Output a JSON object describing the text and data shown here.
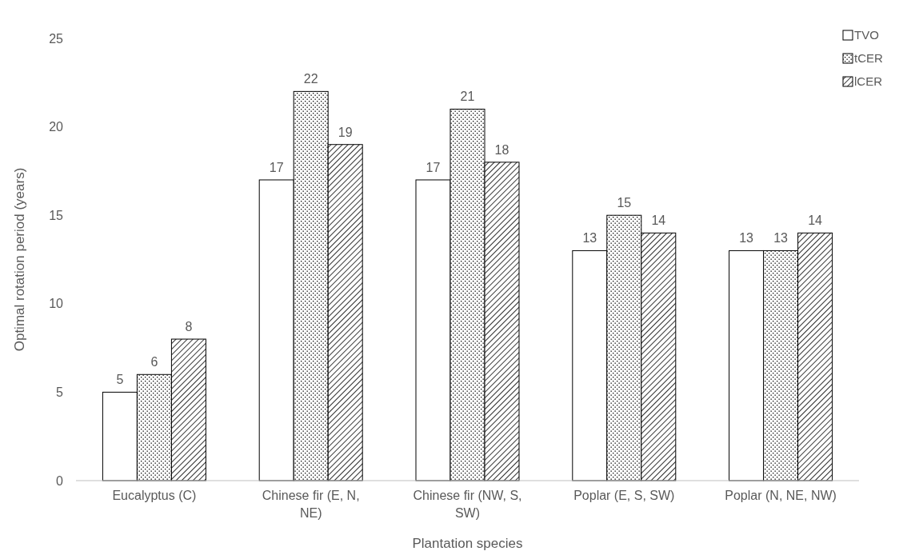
{
  "chart_data": {
    "type": "bar",
    "xlabel": "Plantation species",
    "ylabel": "Optimal rotation period (years)",
    "categories": [
      "Eucalyptus (C)",
      "Chinese fir (E, N, NE)",
      "Chinese fir (NW, S, SW)",
      "Poplar (E, S, SW)",
      "Poplar (N, NE, NW)"
    ],
    "series": [
      {
        "name": "TVO",
        "color": "#ffffff",
        "values": [
          5,
          17,
          17,
          13,
          13
        ]
      },
      {
        "name": "tCER",
        "color": "#000000",
        "values": [
          6,
          22,
          21,
          15,
          13
        ]
      },
      {
        "name": "lCER",
        "color": "#000000",
        "values": [
          8,
          19,
          18,
          14,
          14
        ]
      }
    ],
    "ylim": [
      0,
      25
    ],
    "yticks": [
      0,
      5,
      10,
      15,
      20,
      25
    ],
    "grid": false,
    "legend": "top right",
    "data_labels": true
  }
}
